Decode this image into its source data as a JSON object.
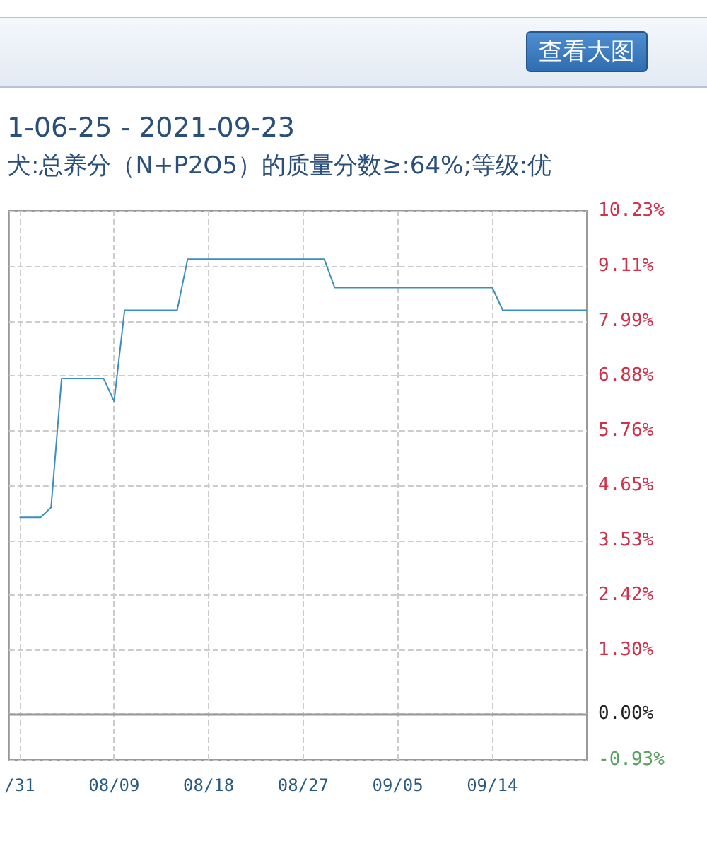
{
  "chart_data": {
    "type": "line",
    "title": "1-06-25 - 2021-09-23",
    "subtitle": "犬:总养分（N+P2O5）的质量分数≥:64%;等级:优",
    "annotations": [
      "查看大图"
    ],
    "x": [
      "2021-07-31",
      "2021-08-02",
      "2021-08-03",
      "2021-08-04",
      "2021-08-08",
      "2021-08-09",
      "2021-08-10",
      "2021-08-15",
      "2021-08-16",
      "2021-08-29",
      "2021-08-30",
      "2021-09-14",
      "2021-09-15",
      "2021-09-23"
    ],
    "series": [
      {
        "color": "#3a8fc0",
        "values": [
          4.0,
          4.0,
          4.2,
          6.82,
          6.82,
          6.36,
          8.21,
          8.21,
          9.25,
          9.25,
          8.67,
          8.67,
          8.21,
          8.21
        ]
      }
    ],
    "xlim": [
      "2021-07-30",
      "2021-09-23"
    ],
    "xticks": [
      {
        "value": "2021-07-31",
        "label": "/31"
      },
      {
        "value": "2021-08-09",
        "label": "08/09"
      },
      {
        "value": "2021-08-18",
        "label": "08/18"
      },
      {
        "value": "2021-08-27",
        "label": "08/27"
      },
      {
        "value": "2021-09-05",
        "label": "09/05"
      },
      {
        "value": "2021-09-14",
        "label": "09/14"
      }
    ],
    "ylim": [
      -0.93,
      10.23
    ],
    "yticks": [
      {
        "value": -0.93,
        "label": "-0.93%"
      },
      {
        "value": 0,
        "label": "0.00%"
      },
      {
        "value": 1.3,
        "label": "1.30%"
      },
      {
        "value": 2.42,
        "label": "2.42%"
      },
      {
        "value": 3.53,
        "label": "3.53%"
      },
      {
        "value": 4.65,
        "label": "4.65%"
      },
      {
        "value": 5.76,
        "label": "5.76%"
      },
      {
        "value": 6.88,
        "label": "6.88%"
      },
      {
        "value": 7.99,
        "label": "7.99%"
      },
      {
        "value": 9.11,
        "label": "9.11%"
      },
      {
        "value": 10.23,
        "label": "10.23%"
      }
    ],
    "ref_lines": [
      {
        "axis": "y",
        "value": 0,
        "color": "#999999"
      }
    ],
    "grid": true,
    "marker": "none",
    "line_style": "solid"
  }
}
